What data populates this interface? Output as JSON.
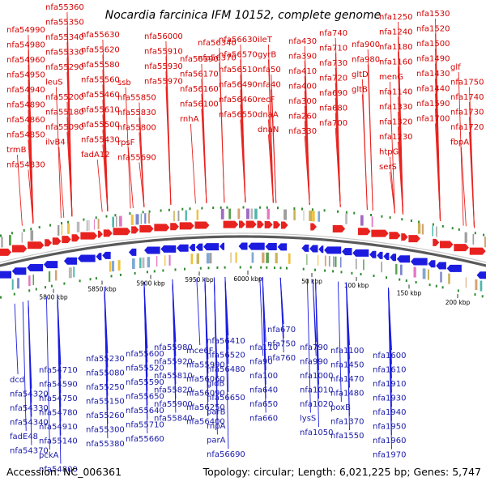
{
  "title": "Nocardia farcinica IFM 10152, complete genome",
  "footer": {
    "accession": "Accession: NC_006361",
    "summary": "Topology: circular; Length: 6,021,225 bp; Genes: 5,747"
  },
  "colors": {
    "forward_strand": "#e8231f",
    "reverse_strand": "#1c1ce0",
    "top_label": "#d40000",
    "bottom_label": "#1a1aa8",
    "backbone": "#8a8a8a",
    "highlight_label": "#f4b6c2"
  },
  "ticks": [
    "5800 kbp",
    "5850 kbp",
    "5900 kbp",
    "5950 kbp",
    "6000 kbp",
    "50 kbp",
    "100 kbp",
    "150 kbp",
    "200 kbp"
  ],
  "top_labels": [
    "nfa54990",
    "nfa54980",
    "nfa54960",
    "nfa54950",
    "nfa54940",
    "nfa54890",
    "nfa54860",
    "nfa54850",
    "trmB",
    "nfa54830",
    "nfa55360",
    "nfa55350",
    "nfa55340",
    "nfa55330",
    "nfa55290",
    "leuS",
    "nfa55200",
    "nfa55180",
    "nfa55090",
    "ilvB4",
    "nfa55630",
    "nfa55620",
    "nfa55580",
    "nfa55560",
    "nfa55460",
    "nfa55610",
    "nfa55500",
    "nfa55430",
    "fadA12",
    "ssb",
    "nfa55850",
    "nfa55830",
    "nfa55800",
    "rpsF",
    "nfa55690",
    "nfa56000",
    "nfa55910",
    "nfa55930",
    "nfa55970",
    "nfa56190",
    "nfa56170",
    "nfa56160",
    "nfa56100",
    "rnhA",
    "nfa56340",
    "nfa56370",
    "nfa56630",
    "nfa56570",
    "nfa56510",
    "nfa56490",
    "nfa56460",
    "nfa56550",
    "ileT",
    "gyrB",
    "nfa50",
    "nfa40",
    "recF",
    "dnaA",
    "dnaN",
    "nfa430",
    "nfa390",
    "nfa410",
    "nfa400",
    "nfa300",
    "nfa260",
    "nfa330",
    "nfa740",
    "nfa710",
    "nfa730",
    "nfa720",
    "nfa690",
    "nfa680",
    "nfa700",
    "nfa900",
    "nfa980",
    "gltD",
    "gltB",
    "nfa1250",
    "nfa1240",
    "nfa1180",
    "nfa1160",
    "menG",
    "nfa1140",
    "nfa1330",
    "nfa1320",
    "nfa1230",
    "htpG",
    "serS",
    "nfa1530",
    "nfa1520",
    "nfa1500",
    "nfa1490",
    "nfa1430",
    "nfa1440",
    "nfa1590",
    "nfa1700",
    "glf",
    "nfa1750",
    "nfa1740",
    "nfa1730",
    "nfa1720",
    "fbpA"
  ],
  "bottom_labels": [
    "dcd",
    "nfa54320",
    "nfa54330",
    "nfa54340",
    "fadE48",
    "nfa54370",
    "nfa54710",
    "nfa54590",
    "nfa54750",
    "nfa54780",
    "nfa54910",
    "nfa55140",
    "pckA",
    "nfa54800",
    "nfa55230",
    "nfa55080",
    "nfa55250",
    "nfa55150",
    "nfa55260",
    "nfa55300",
    "nfa55380",
    "nfa55600",
    "nfa55520",
    "nfa55590",
    "nfa55650",
    "nfa55640",
    "nfa55710",
    "nfa55660",
    "nfa55980",
    "nfa55920",
    "nfa55810",
    "nfa55820",
    "nfa55900",
    "nfa55840",
    "mce6F",
    "nfa55990",
    "nfa56060",
    "nfa56090",
    "nfa56250",
    "nfa56400",
    "nfa56410",
    "nfa56520",
    "nfa56480",
    "gidB",
    "nfa56650",
    "parB",
    "rnpA",
    "parA",
    "nfa56690",
    "nfa110",
    "nfa90",
    "nfa100",
    "nfa640",
    "nfa650",
    "nfa660",
    "nfa670",
    "nfa750",
    "nfa760",
    "nfa790",
    "nfa990",
    "nfa1000",
    "nfa1010",
    "nfa1020",
    "lysS",
    "nfa1050",
    "nfa1100",
    "nfa1450",
    "nfa1470",
    "nfa1480",
    "poxB",
    "nfa1370",
    "nfa1550",
    "nfa1600",
    "nfa1610",
    "nfa1910",
    "nfa1930",
    "nfa1940",
    "nfa1950",
    "nfa1960",
    "nfa1970"
  ]
}
